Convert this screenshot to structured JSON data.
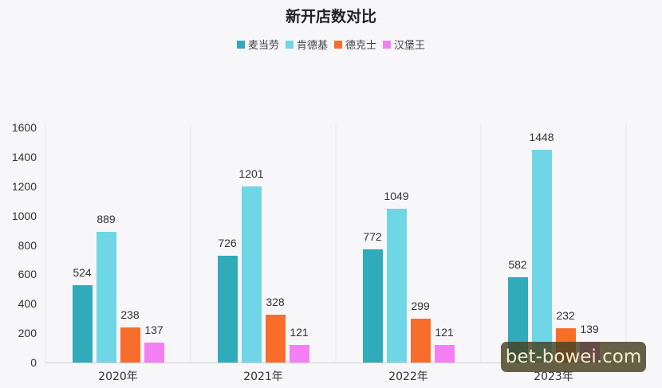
{
  "chart_data": {
    "type": "bar",
    "title": "新开店数对比",
    "categories": [
      "2020年",
      "2021年",
      "2022年",
      "2023年"
    ],
    "series": [
      {
        "name": "麦当劳",
        "color": "#2fabb9",
        "values": [
          524,
          726,
          772,
          582
        ]
      },
      {
        "name": "肯德基",
        "color": "#6fd6e6",
        "values": [
          889,
          1201,
          1049,
          1448
        ]
      },
      {
        "name": "德克士",
        "color": "#f96d2c",
        "values": [
          238,
          328,
          299,
          232
        ]
      },
      {
        "name": "汉堡王",
        "color": "#f47ff4",
        "values": [
          137,
          121,
          121,
          139
        ]
      }
    ],
    "xlabel": "",
    "ylabel": "",
    "ylim": [
      0,
      1600
    ],
    "yticks": [
      0,
      200,
      400,
      600,
      800,
      1000,
      1200,
      1400,
      1600
    ],
    "grid": false,
    "legend_position": "top"
  },
  "watermark": "bet-bowei.com"
}
